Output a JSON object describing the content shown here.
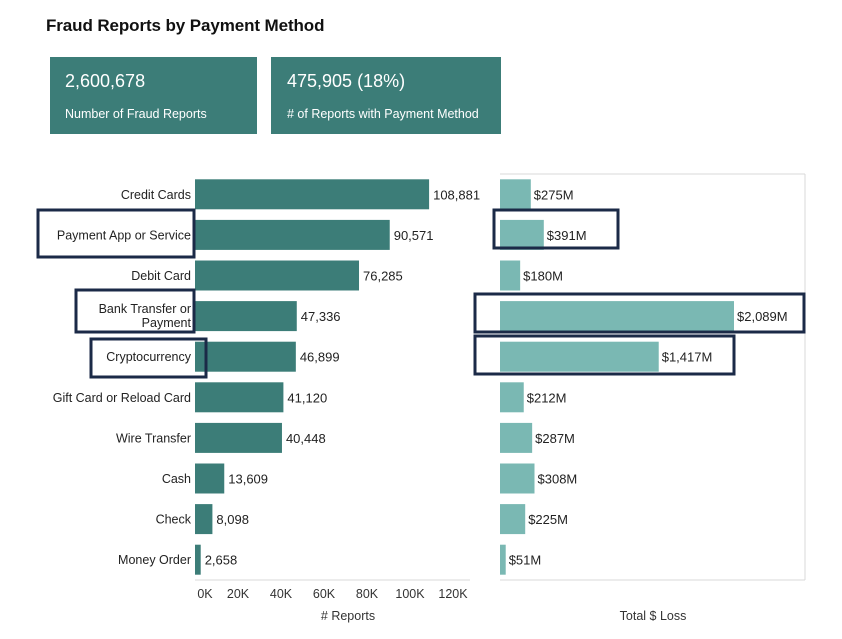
{
  "header": {
    "title": "Fraud Reports by Payment Method"
  },
  "kpis": [
    {
      "value": "2,600,678",
      "label": "Number of Fraud Reports"
    },
    {
      "value": "475,905  (18%)",
      "label": "# of Reports with Payment Method"
    }
  ],
  "colors": {
    "kpi_bg": "#3c7d78",
    "reports_bar": "#3c7d78",
    "loss_bar": "#7ab8b3",
    "highlight_border": "#1b2a47"
  },
  "chart_data": [
    {
      "type": "bar",
      "orientation": "horizontal",
      "categories": [
        "Credit Cards",
        "Payment App or Service",
        "Debit Card",
        "Bank Transfer or Payment",
        "Cryptocurrency",
        "Gift Card or Reload Card",
        "Wire Transfer",
        "Cash",
        "Check",
        "Money Order"
      ],
      "values": [
        108881,
        90571,
        76285,
        47336,
        46899,
        41120,
        40448,
        13609,
        8098,
        2658
      ],
      "value_labels": [
        "108,881",
        "90,571",
        "76,285",
        "47,336",
        "46,899",
        "41,120",
        "40,448",
        "13,609",
        "8,098",
        "2,658"
      ],
      "xlabel": "# Reports",
      "xlim": [
        0,
        120000
      ],
      "ticks": [
        0,
        20000,
        40000,
        60000,
        80000,
        100000,
        120000
      ],
      "tick_labels": [
        "0K",
        "20K",
        "40K",
        "60K",
        "80K",
        "100K",
        "120K"
      ],
      "highlighted": [
        "Payment App or Service",
        "Bank Transfer or Payment",
        "Cryptocurrency"
      ]
    },
    {
      "type": "bar",
      "orientation": "horizontal",
      "categories": [
        "Credit Cards",
        "Payment App or Service",
        "Debit Card",
        "Bank Transfer or Payment",
        "Cryptocurrency",
        "Gift Card or Reload Card",
        "Wire Transfer",
        "Cash",
        "Check",
        "Money Order"
      ],
      "values": [
        275,
        391,
        180,
        2089,
        1417,
        212,
        287,
        308,
        225,
        51
      ],
      "value_labels": [
        "$275M",
        "$391M",
        "$180M",
        "$2,089M",
        "$1,417M",
        "$212M",
        "$287M",
        "$308M",
        "$225M",
        "$51M"
      ],
      "xlabel": "Total $ Loss",
      "unit": "$M",
      "highlighted": [
        "Payment App or Service",
        "Bank Transfer or Payment",
        "Cryptocurrency"
      ]
    }
  ]
}
